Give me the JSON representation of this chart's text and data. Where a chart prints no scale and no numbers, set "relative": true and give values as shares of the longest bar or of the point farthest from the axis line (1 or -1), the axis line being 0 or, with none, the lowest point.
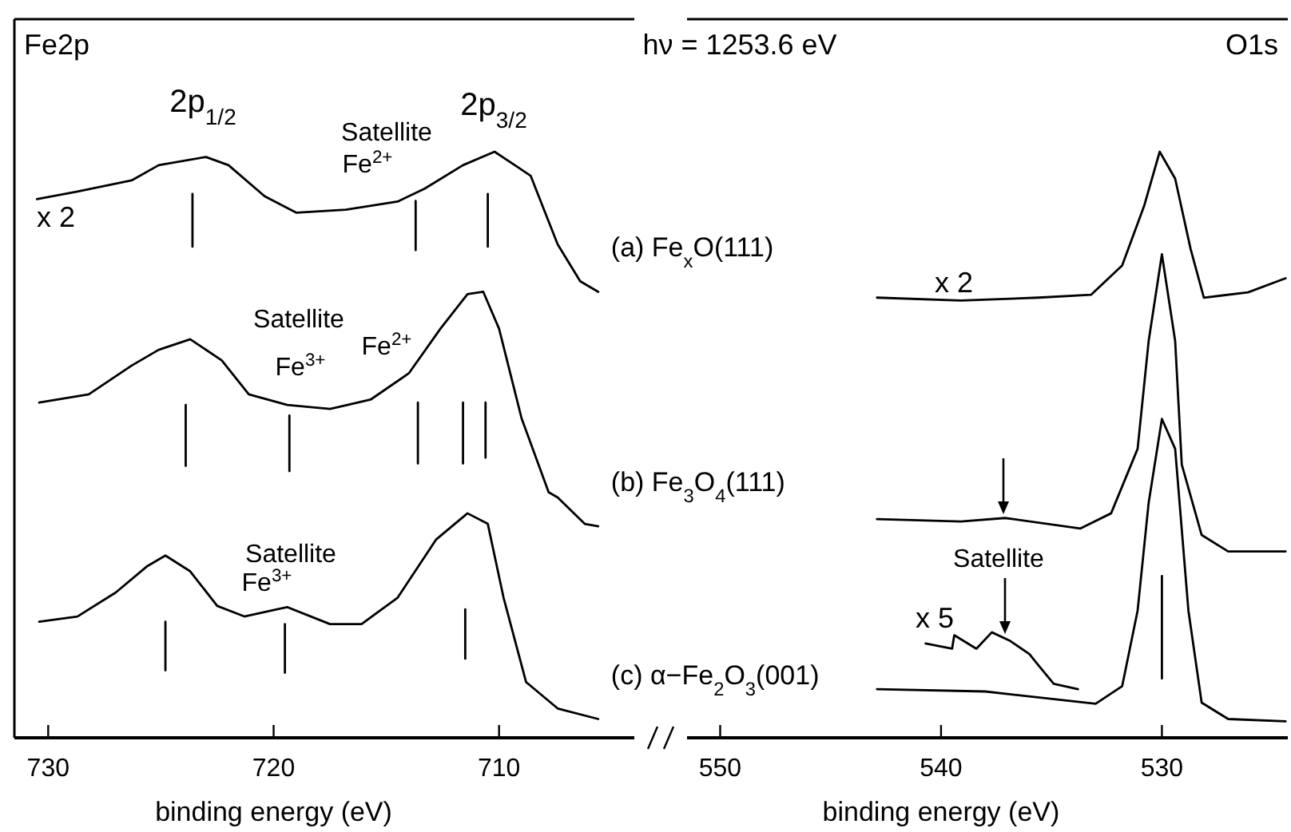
{
  "chart_data": [
    {
      "type": "line",
      "title": "Fe2p",
      "xlabel": "binding energy (eV)",
      "relative": true,
      "xlim": [
        731.5,
        704
      ],
      "xticks": [
        730,
        720,
        710
      ],
      "annotations": [
        "hν = 1253.6 eV",
        "2p$_{1/2}$",
        "2p$_{3/2}$",
        "Satellite",
        "Fe$^{2+}$",
        "x 2",
        "Satellite",
        "Fe$^{3+}$",
        "Fe$^{2+}$",
        "Satellite",
        "Fe$^{3+}$"
      ],
      "series": [
        {
          "name": "(a) Fe$_{x}$O(111)",
          "color": "#000000",
          "x": [
            730.5,
            728.7,
            726.3,
            725.1,
            723.0,
            722.0,
            720.4,
            719.0,
            716.8,
            714.5,
            713.3,
            711.6,
            710.2,
            709.3,
            708.6,
            707.4,
            706.4,
            705.6
          ],
          "values": [
            0.919,
            0.932,
            0.951,
            0.977,
            0.991,
            0.977,
            0.924,
            0.896,
            0.901,
            0.915,
            0.937,
            0.977,
            1.0,
            0.977,
            0.959,
            0.842,
            0.779,
            0.761
          ]
        },
        {
          "name": "(b) Fe$_{3}$O$_{4}$(111)",
          "color": "#000000",
          "x": [
            730.4,
            728.2,
            726.3,
            725.1,
            723.7,
            722.3,
            721.1,
            719.4,
            717.5,
            715.7,
            714.0,
            712.6,
            711.4,
            710.7,
            710.0,
            709.0,
            707.8,
            707.4,
            706.2,
            705.6
          ],
          "values": [
            0.572,
            0.586,
            0.635,
            0.662,
            0.68,
            0.644,
            0.586,
            0.568,
            0.561,
            0.577,
            0.622,
            0.698,
            0.757,
            0.761,
            0.698,
            0.545,
            0.419,
            0.41,
            0.365,
            0.361
          ]
        },
        {
          "name": "(c) α−Fe$_{2}$O$_{3}$(001)",
          "color": "#000000",
          "x": [
            730.4,
            728.7,
            727.0,
            725.6,
            724.8,
            723.7,
            722.5,
            721.3,
            719.4,
            717.5,
            716.1,
            714.5,
            712.8,
            711.4,
            710.5,
            709.8,
            708.8,
            707.4,
            705.6
          ],
          "values": [
            0.198,
            0.207,
            0.248,
            0.293,
            0.311,
            0.284,
            0.225,
            0.207,
            0.223,
            0.194,
            0.194,
            0.239,
            0.338,
            0.383,
            0.365,
            0.239,
            0.095,
            0.05,
            0.032
          ]
        },
        {
          "color": "#000000",
          "x": [
            723.6,
            723.6,
            null,
            713.7,
            713.7,
            null,
            710.5,
            710.5,
            null,
            723.9,
            723.9,
            null,
            719.3,
            719.3,
            null,
            713.6,
            713.6,
            null,
            711.6,
            711.6,
            null,
            710.6,
            710.6,
            null,
            724.8,
            724.8,
            null,
            719.5,
            719.5,
            null,
            711.5,
            711.5
          ],
          "values": [
            0.928,
            0.838,
            null,
            0.916,
            0.832,
            null,
            0.928,
            0.838,
            null,
            0.568,
            0.464,
            null,
            0.55,
            0.455,
            null,
            0.572,
            0.468,
            null,
            0.572,
            0.468,
            null,
            0.572,
            0.478,
            null,
            0.198,
            0.115,
            null,
            0.194,
            0.111,
            null,
            0.219,
            0.135
          ]
        }
      ]
    },
    {
      "type": "line",
      "title": "O1s",
      "xlabel": "binding energy (eV)",
      "relative": true,
      "xlim": [
        551.5,
        524.3
      ],
      "xticks": [
        550,
        540,
        530
      ],
      "annotations": [
        "x 2",
        "Satellite",
        "x 5"
      ],
      "series": [
        {
          "color": "#000000",
          "x": [
            542.9,
            539.1,
            535.6,
            533.2,
            531.8,
            530.8,
            530.1,
            529.4,
            528.7,
            528.1,
            526.1,
            524.4
          ],
          "values": [
            0.751,
            0.746,
            0.751,
            0.756,
            0.806,
            0.908,
            1.0,
            0.954,
            0.834,
            0.751,
            0.76,
            0.784
          ]
        },
        {
          "color": "#000000",
          "x": [
            542.9,
            539.1,
            537.1,
            533.7,
            532.3,
            531.1,
            530.6,
            530.0,
            529.4,
            529.1,
            528.2,
            527.0,
            524.4
          ],
          "values": [
            0.373,
            0.369,
            0.375,
            0.357,
            0.383,
            0.493,
            0.677,
            0.825,
            0.677,
            0.466,
            0.346,
            0.318,
            0.318
          ]
        },
        {
          "color": "#000000",
          "x": [
            542.9,
            538.0,
            533.0,
            531.8,
            531.1,
            530.6,
            530.0,
            529.4,
            528.8,
            528.2,
            527.0,
            524.4
          ],
          "values": [
            0.083,
            0.079,
            0.058,
            0.088,
            0.217,
            0.401,
            0.544,
            0.493,
            0.217,
            0.06,
            0.032,
            0.028
          ]
        },
        {
          "color": "#000000",
          "x": [
            540.7,
            539.5,
            539.4,
            538.4,
            537.7,
            536.9,
            536.0,
            535.6,
            534.9,
            533.8
          ],
          "values": [
            0.161,
            0.152,
            0.175,
            0.152,
            0.18,
            0.166,
            0.143,
            0.124,
            0.092,
            0.083
          ]
        },
        {
          "color": "#000000",
          "x": [
            530.0,
            530.0
          ],
          "values": [
            0.276,
            0.101
          ]
        }
      ]
    }
  ]
}
